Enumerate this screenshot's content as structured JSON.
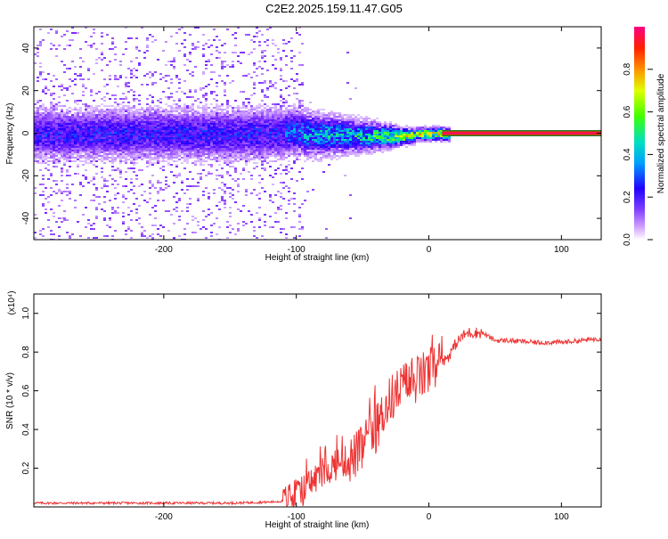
{
  "title": "C2E2.2025.159.11.47.G05",
  "chart_data": [
    {
      "type": "heatmap",
      "xlabel": "Height of straight line (km)",
      "ylabel": "Frequency (Hz)",
      "xlim": [
        -298,
        130
      ],
      "ylim": [
        -50,
        50
      ],
      "xticks": [
        -200,
        -100,
        0,
        100
      ],
      "xtick_labels": [
        "-200",
        "-100",
        "0",
        "100"
      ],
      "yticks": [
        -40,
        -20,
        0,
        20,
        40
      ],
      "ytick_labels": [
        "-40",
        "-20",
        "0",
        "20",
        "40"
      ],
      "colorbar": {
        "label": "Normalized spectral amplitude",
        "ticks": [
          0,
          0.2,
          0.4,
          0.6,
          0.8
        ],
        "tick_labels": [
          "0.0",
          "0.2",
          "0.4",
          "0.6",
          "0.8"
        ],
        "range": [
          0,
          1
        ],
        "colormap": [
          "#ffffff",
          "#c080ff",
          "#6000ff",
          "#0000ff",
          "#00c0ff",
          "#00ff80",
          "#80ff00",
          "#ffff00",
          "#ff8000",
          "#ff0000",
          "#ff0080"
        ]
      },
      "grid": false
    },
    {
      "type": "line",
      "xlabel": "Height of straight line (km)",
      "ylabel": "SNR (10 * v/v)",
      "multiplier": "(x10⁴)",
      "xlim": [
        -298,
        130
      ],
      "ylim": [
        0,
        1.1
      ],
      "xticks": [
        -200,
        -100,
        0,
        100
      ],
      "xtick_labels": [
        "-200",
        "-100",
        "0",
        "100"
      ],
      "yticks": [
        0.2,
        0.4,
        0.6,
        0.8,
        1.0
      ],
      "ytick_labels": [
        "0.2",
        "0.4",
        "0.6",
        "0.8",
        "1.0"
      ],
      "color": "#ee3333",
      "grid": false,
      "series": [
        {
          "x": [
            -298,
            -250,
            -200,
            -150,
            -120,
            -110,
            -100,
            -90,
            -80,
            -70,
            -60,
            -50,
            -40,
            -30,
            -20,
            -10,
            0,
            10,
            15,
            20,
            25,
            30,
            40,
            50,
            60,
            80,
            100,
            130
          ],
          "y": [
            0.02,
            0.02,
            0.02,
            0.02,
            0.025,
            0.03,
            0.05,
            0.12,
            0.18,
            0.22,
            0.24,
            0.3,
            0.4,
            0.55,
            0.62,
            0.65,
            0.7,
            0.75,
            0.78,
            0.84,
            0.88,
            0.9,
            0.9,
            0.86,
            0.86,
            0.85,
            0.85,
            0.87
          ]
        }
      ]
    }
  ]
}
